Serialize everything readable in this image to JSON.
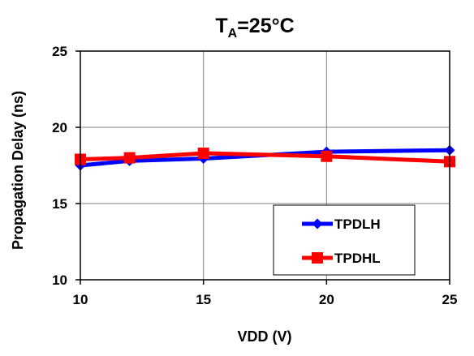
{
  "chart_data": {
    "type": "line",
    "title": {
      "prefix": "T",
      "subscript": "A",
      "suffix": "=25°C"
    },
    "xlabel": "VDD (V)",
    "ylabel": "Propagation Delay  (ns)",
    "xlim": [
      10,
      25
    ],
    "ylim": [
      10,
      25
    ],
    "x_ticks": [
      10,
      15,
      20,
      25
    ],
    "y_ticks": [
      10,
      15,
      20,
      25
    ],
    "x_tick_labels": [
      "10",
      "15",
      "20",
      "25"
    ],
    "y_tick_labels": [
      "10",
      "15",
      "20",
      "25"
    ],
    "grid": true,
    "legend_position": "bottom-right",
    "series": [
      {
        "name": "TPDLH",
        "color": "#0000ff",
        "marker": "diamond",
        "x": [
          10,
          12,
          15,
          20,
          25
        ],
        "y": [
          17.5,
          17.8,
          17.95,
          18.4,
          18.5
        ]
      },
      {
        "name": "TPDHL",
        "color": "#ff0000",
        "marker": "square",
        "x": [
          10,
          12,
          15,
          20,
          25
        ],
        "y": [
          17.9,
          18.0,
          18.3,
          18.1,
          17.75
        ]
      }
    ]
  }
}
